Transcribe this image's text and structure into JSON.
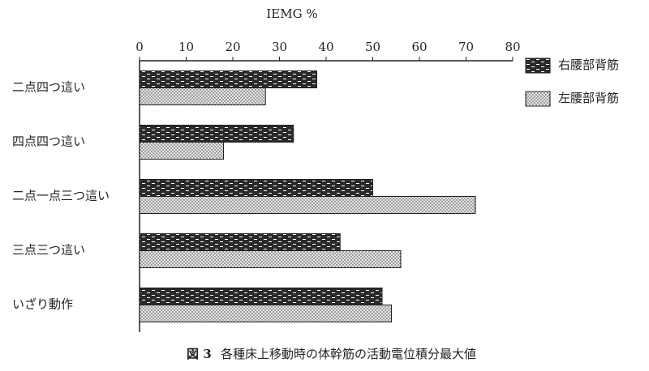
{
  "chart_data": {
    "type": "bar",
    "orientation": "horizontal",
    "x_label": "IEMG %",
    "categories": [
      "二点四つ這い",
      "四点四つ這い",
      "二点一点三つ這い",
      "三点三つ這い",
      "いざり動作"
    ],
    "series": [
      {
        "name": "右腰部背筋",
        "color": "#2a2a2a",
        "values": [
          38,
          33,
          50,
          43,
          52
        ]
      },
      {
        "name": "左腰部背筋",
        "color": "#e6e6e6",
        "values": [
          27,
          18,
          72,
          56,
          54
        ]
      }
    ],
    "xlim": [
      0,
      80
    ],
    "xticks": [
      0,
      10,
      20,
      30,
      40,
      50,
      60,
      70,
      80
    ],
    "legend": "top-right",
    "figure_label": "図 3",
    "caption": "各種床上移動時の体幹筋の活動電位積分最大値"
  }
}
